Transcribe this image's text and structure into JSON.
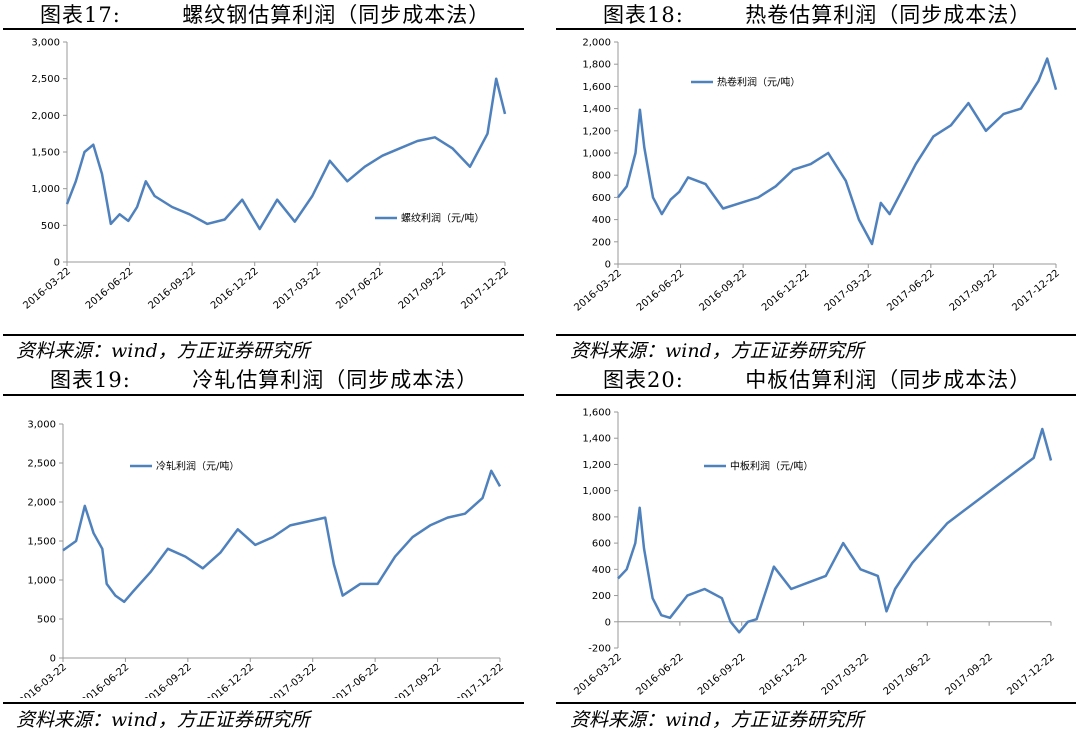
{
  "panels": [
    {
      "title": "图表17:        螺纹钢估算利润（同步成本法）",
      "source": "资料来源：wind，方正证券研究所",
      "chart_data": {
        "type": "line",
        "yticks": [
          "0",
          "500",
          "1,000",
          "1,500",
          "2,000",
          "2,500",
          "3,000"
        ],
        "ylim": [
          0,
          3000
        ],
        "xticks": [
          "2016-03-22",
          "2016-06-22",
          "2016-09-22",
          "2016-12-22",
          "2017-03-22",
          "2017-06-22",
          "2017-09-22",
          "2017-12-22"
        ],
        "legend": "螺纹利润（元/吨）",
        "legend_position": "center-right",
        "x": [
          0,
          0.02,
          0.04,
          0.06,
          0.08,
          0.1,
          0.12,
          0.14,
          0.16,
          0.18,
          0.2,
          0.24,
          0.28,
          0.32,
          0.36,
          0.4,
          0.44,
          0.48,
          0.52,
          0.56,
          0.6,
          0.64,
          0.68,
          0.72,
          0.76,
          0.8,
          0.84,
          0.88,
          0.92,
          0.96,
          0.98,
          1.0
        ],
        "y": [
          790,
          1100,
          1500,
          1600,
          1200,
          520,
          650,
          560,
          750,
          1100,
          900,
          750,
          650,
          520,
          580,
          850,
          450,
          850,
          550,
          900,
          1380,
          1100,
          1300,
          1450,
          1550,
          1650,
          1700,
          1550,
          1300,
          1750,
          2500,
          2020
        ]
      }
    },
    {
      "title": "图表18:        热卷估算利润（同步成本法）",
      "source": "资料来源：wind，方正证券研究所",
      "chart_data": {
        "type": "line",
        "yticks": [
          "0",
          "200",
          "400",
          "600",
          "800",
          "1,000",
          "1,200",
          "1,400",
          "1,600",
          "1,800",
          "2,000"
        ],
        "ylim": [
          0,
          2000
        ],
        "xticks": [
          "2016-03-22",
          "2016-06-22",
          "2016-09-22",
          "2016-12-22",
          "2017-03-22",
          "2017-06-22",
          "2017-09-22",
          "2017-12-22"
        ],
        "legend": "热卷利润（元/吨）",
        "legend_position": "top-left",
        "x": [
          0,
          0.02,
          0.04,
          0.05,
          0.06,
          0.08,
          0.1,
          0.12,
          0.14,
          0.16,
          0.2,
          0.24,
          0.28,
          0.32,
          0.36,
          0.4,
          0.44,
          0.48,
          0.52,
          0.55,
          0.58,
          0.6,
          0.62,
          0.64,
          0.68,
          0.72,
          0.76,
          0.8,
          0.84,
          0.88,
          0.92,
          0.96,
          0.98,
          1.0
        ],
        "y": [
          600,
          700,
          1000,
          1390,
          1050,
          600,
          450,
          580,
          650,
          780,
          720,
          500,
          550,
          600,
          700,
          850,
          900,
          1000,
          750,
          400,
          180,
          550,
          450,
          600,
          900,
          1150,
          1250,
          1450,
          1200,
          1350,
          1400,
          1650,
          1850,
          1570
        ]
      }
    },
    {
      "title": "图表19:        冷轧估算利润（同步成本法）",
      "source": "资料来源：wind，方正证券研究所",
      "chart_data": {
        "type": "line",
        "yticks": [
          "0",
          "500",
          "1,000",
          "1,500",
          "2,000",
          "2,500",
          "3,000"
        ],
        "ylim": [
          0,
          3000
        ],
        "xticks": [
          "2016-03-22",
          "2016-06-22",
          "2016-09-22",
          "2016-12-22",
          "2017-03-22",
          "2017-06-22",
          "2017-09-22",
          "2017-12-22"
        ],
        "legend": "冷轧利润（元/吨）",
        "legend_position": "top-left",
        "x": [
          0,
          0.03,
          0.05,
          0.07,
          0.09,
          0.1,
          0.12,
          0.14,
          0.16,
          0.2,
          0.24,
          0.28,
          0.32,
          0.36,
          0.4,
          0.44,
          0.48,
          0.52,
          0.56,
          0.6,
          0.62,
          0.64,
          0.68,
          0.72,
          0.76,
          0.8,
          0.84,
          0.88,
          0.92,
          0.96,
          0.98,
          1.0
        ],
        "y": [
          1380,
          1500,
          1950,
          1600,
          1400,
          950,
          800,
          720,
          850,
          1100,
          1400,
          1300,
          1150,
          1350,
          1650,
          1450,
          1550,
          1700,
          1750,
          1800,
          1200,
          800,
          950,
          950,
          1300,
          1550,
          1700,
          1800,
          1850,
          2050,
          2400,
          2200
        ]
      }
    },
    {
      "title": "图表20:        中板估算利润（同步成本法）",
      "source": "资料来源：wind，方正证券研究所",
      "chart_data": {
        "type": "line",
        "yticks": [
          "-200",
          "0",
          "200",
          "400",
          "600",
          "800",
          "1,000",
          "1,200",
          "1,400",
          "1,600"
        ],
        "ylim": [
          -200,
          1600
        ],
        "xticks": [
          "2016-03-22",
          "2016-06-22",
          "2016-09-22",
          "2016-12-22",
          "2017-03-22",
          "2017-06-22",
          "2017-09-22",
          "2017-12-22"
        ],
        "legend": "中板利润（元/吨）",
        "legend_position": "top-left",
        "x": [
          0,
          0.02,
          0.04,
          0.05,
          0.06,
          0.08,
          0.1,
          0.12,
          0.16,
          0.2,
          0.24,
          0.26,
          0.28,
          0.3,
          0.32,
          0.36,
          0.4,
          0.44,
          0.48,
          0.52,
          0.56,
          0.6,
          0.62,
          0.64,
          0.68,
          0.72,
          0.76,
          0.8,
          0.84,
          0.88,
          0.92,
          0.96,
          0.98,
          1.0
        ],
        "y": [
          330,
          400,
          600,
          870,
          560,
          180,
          50,
          30,
          200,
          250,
          180,
          0,
          -80,
          0,
          20,
          420,
          250,
          300,
          350,
          600,
          400,
          350,
          80,
          250,
          450,
          600,
          750,
          850,
          950,
          1050,
          1150,
          1250,
          1470,
          1230
        ]
      }
    }
  ]
}
